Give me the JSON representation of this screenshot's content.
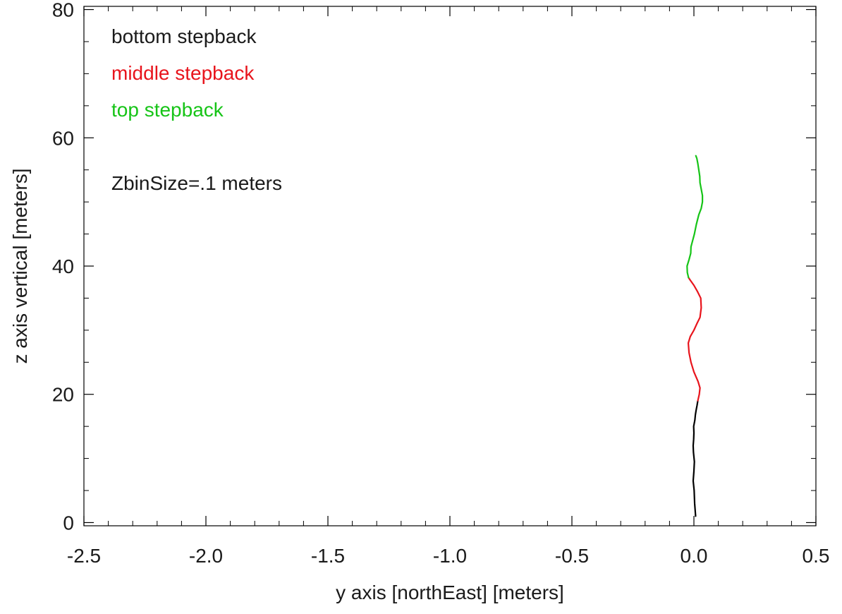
{
  "chart_data": {
    "type": "line",
    "title": "",
    "xlabel": "y axis [northEast] [meters]",
    "ylabel": "z axis vertical [meters]",
    "xlim": [
      -2.5,
      0.5
    ],
    "ylim": [
      -0.5,
      80.5
    ],
    "x_ticks": [
      -2.5,
      -2.0,
      -1.5,
      -1.0,
      -0.5,
      0.0,
      0.5
    ],
    "x_tick_labels": [
      "-2.5",
      "-2.0",
      "-1.5",
      "-1.0",
      "-0.5",
      "0.0",
      "0.5"
    ],
    "y_ticks": [
      0,
      20,
      40,
      60,
      80
    ],
    "y_tick_labels": [
      "0",
      "20",
      "40",
      "60",
      "80"
    ],
    "grid": false,
    "legend_position": "top-left",
    "annotation": "ZbinSize=.1 meters",
    "series": [
      {
        "name": "bottom stepback",
        "color": "#000000",
        "x": [
          0.007,
          0.003,
          0.001,
          -0.003,
          0.0,
          0.002,
          -0.002,
          -0.003,
          -0.001,
          0.0,
          -0.001,
          0.004,
          0.006,
          0.009,
          0.013,
          0.016
        ],
        "z": [
          1.0,
          3.0,
          5.0,
          6.5,
          8.0,
          9.5,
          11.0,
          12.0,
          13.0,
          14.0,
          15.0,
          16.0,
          16.8,
          17.5,
          18.3,
          19.0
        ]
      },
      {
        "name": "middle stepback",
        "color": "#e8141c",
        "x": [
          0.016,
          0.022,
          0.025,
          0.017,
          0.0,
          -0.012,
          -0.02,
          -0.023,
          -0.015,
          0.0,
          0.012,
          0.025,
          0.03,
          0.028,
          0.015,
          0.0,
          -0.015,
          -0.022
        ],
        "z": [
          19.0,
          20.0,
          21.0,
          22.0,
          23.5,
          25.0,
          26.5,
          28.0,
          29.0,
          30.0,
          31.0,
          32.0,
          33.5,
          35.0,
          36.0,
          37.0,
          37.8,
          38.2
        ]
      },
      {
        "name": "top stepback",
        "color": "#16c417",
        "x": [
          -0.022,
          -0.027,
          -0.028,
          -0.02,
          -0.013,
          -0.012,
          -0.005,
          0.002,
          0.01,
          0.02,
          0.03,
          0.035,
          0.035,
          0.03,
          0.025,
          0.024,
          0.02,
          0.016,
          0.012,
          0.008
        ],
        "z": [
          38.2,
          39.0,
          40.0,
          41.0,
          42.0,
          43.0,
          44.0,
          45.0,
          46.5,
          48.0,
          49.0,
          50.0,
          51.0,
          52.0,
          53.0,
          54.0,
          55.0,
          56.0,
          56.8,
          57.2
        ]
      }
    ]
  }
}
